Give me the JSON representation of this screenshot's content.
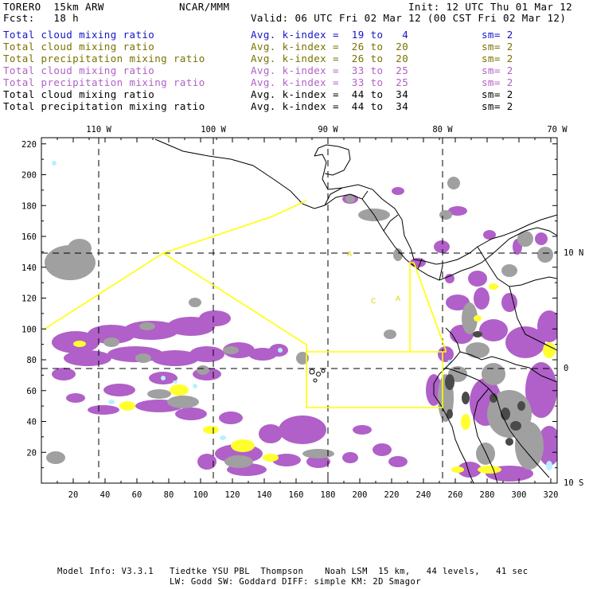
{
  "header": {
    "model": "TORERO  15km ARW",
    "forecast": "Fcst:   18 h",
    "center": "NCAR/MMM",
    "init": "Init: 12 UTC Thu 01 Mar 12",
    "valid": "Valid: 06 UTC Fri 02 Mar 12 (00 CST Fri 02 Mar 12)"
  },
  "fields": [
    {
      "name": "Total cloud mixing ratio",
      "index": "Avg. k-index =  19 to   4",
      "sm": "sm= 2",
      "color": "#1414c8"
    },
    {
      "name": "Total cloud mixing ratio",
      "index": "Avg. k-index =  26 to  20",
      "sm": "sm= 2",
      "color": "#7a7200"
    },
    {
      "name": "Total precipitation mixing ratio",
      "index": "Avg. k-index =  26 to  20",
      "sm": "sm= 2",
      "color": "#7a7200"
    },
    {
      "name": "Total cloud mixing ratio",
      "index": "Avg. k-index =  33 to  25",
      "sm": "sm= 2",
      "color": "#b060c8"
    },
    {
      "name": "Total precipitation mixing ratio",
      "index": "Avg. k-index =  33 to  25",
      "sm": "sm= 2",
      "color": "#b060c8"
    },
    {
      "name": "Total cloud mixing ratio",
      "index": "Avg. k-index =  44 to  34",
      "sm": "sm= 2",
      "color": "#000000"
    },
    {
      "name": "Total precipitation mixing ratio",
      "index": "Avg. k-index =  44 to  34",
      "sm": "sm= 2",
      "color": "#000000"
    }
  ],
  "axes": {
    "x_ticks": [
      "20",
      "40",
      "60",
      "80",
      "100",
      "120",
      "140",
      "160",
      "180",
      "200",
      "220",
      "240",
      "260",
      "280",
      "300",
      "320"
    ],
    "y_ticks": [
      "20",
      "40",
      "60",
      "80",
      "100",
      "120",
      "140",
      "160",
      "180",
      "200",
      "220"
    ],
    "lon_labels": [
      "110 W",
      "100 W",
      "90 W",
      "80 W",
      "70 W"
    ],
    "lat_labels": [
      "10 N",
      "0",
      "10 S"
    ]
  },
  "footer": {
    "line1": "Model Info: V3.3.1   Tiedtke YSU PBL  Thompson    Noah LSM  15 km,   44 levels,   41 sec",
    "line2": "LW: Godd SW: Goddard DIFF: simple KM: 2D Smagor"
  },
  "colors": {
    "cloud_gray": "#a0a0a0",
    "dark_gray": "#4a4a4a",
    "violet": "#b060c8",
    "yellow": "#ffff30",
    "cyan": "#b8f0ff",
    "domain_line": "#ffff00"
  },
  "map_marks": {
    "yellow_small_labels": [
      "A",
      "C",
      "A"
    ]
  }
}
